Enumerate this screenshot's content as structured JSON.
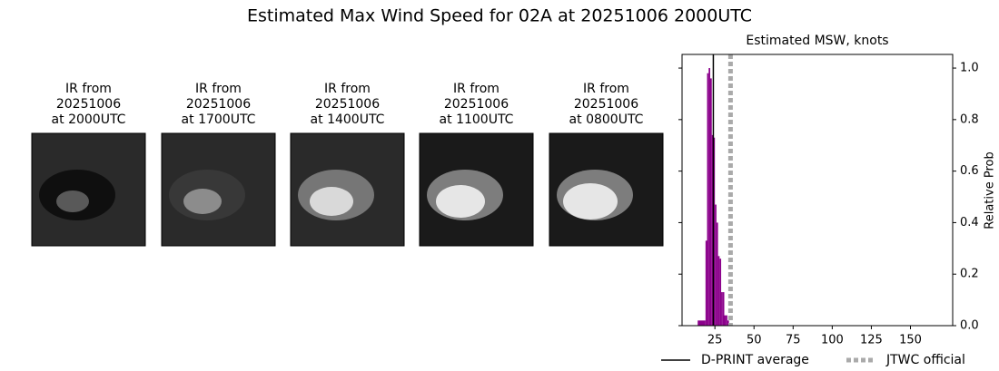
{
  "title": "Estimated Max Wind Speed for 02A at 20251006 2000UTC",
  "panels": [
    {
      "lines": [
        "IR from",
        "20251006",
        "at 2000UTC"
      ]
    },
    {
      "lines": [
        "IR from",
        "20251006",
        "at 1700UTC"
      ]
    },
    {
      "lines": [
        "IR from",
        "20251006",
        "at 1400UTC"
      ]
    },
    {
      "lines": [
        "IR from",
        "20251006",
        "at 1100UTC"
      ]
    },
    {
      "lines": [
        "IR from",
        "20251006",
        "at 0800UTC"
      ]
    }
  ],
  "chart_data": {
    "type": "histogram",
    "title": "Estimated MSW, knots",
    "y_label": "Relative Prob",
    "bins": [
      14,
      19,
      20,
      21,
      22,
      23,
      24,
      25,
      26,
      27,
      28,
      29,
      30,
      31,
      32,
      33,
      34
    ],
    "values": [
      0.02,
      0.33,
      0.98,
      1.0,
      0.96,
      0.74,
      0.73,
      0.47,
      0.4,
      0.27,
      0.26,
      0.13,
      0.13,
      0.04,
      0.04,
      0.02
    ],
    "color": "#8b008b",
    "xlim": [
      4,
      177
    ],
    "xticks": [
      25,
      50,
      75,
      100,
      125,
      150
    ],
    "ylim": [
      0,
      1.053
    ],
    "yticks": [
      {
        "value": 0,
        "label": "0.0"
      },
      0.2,
      0.4,
      0.6,
      0.8,
      {
        "value": 1,
        "label": "1.0"
      }
    ],
    "lines": [
      {
        "name": "D-PRINT average",
        "value": 24,
        "color": "#000000",
        "style": "solid"
      },
      {
        "name": "JTWC official",
        "value": 35,
        "color": "#aaaaaa",
        "style": "dotted"
      }
    ]
  }
}
